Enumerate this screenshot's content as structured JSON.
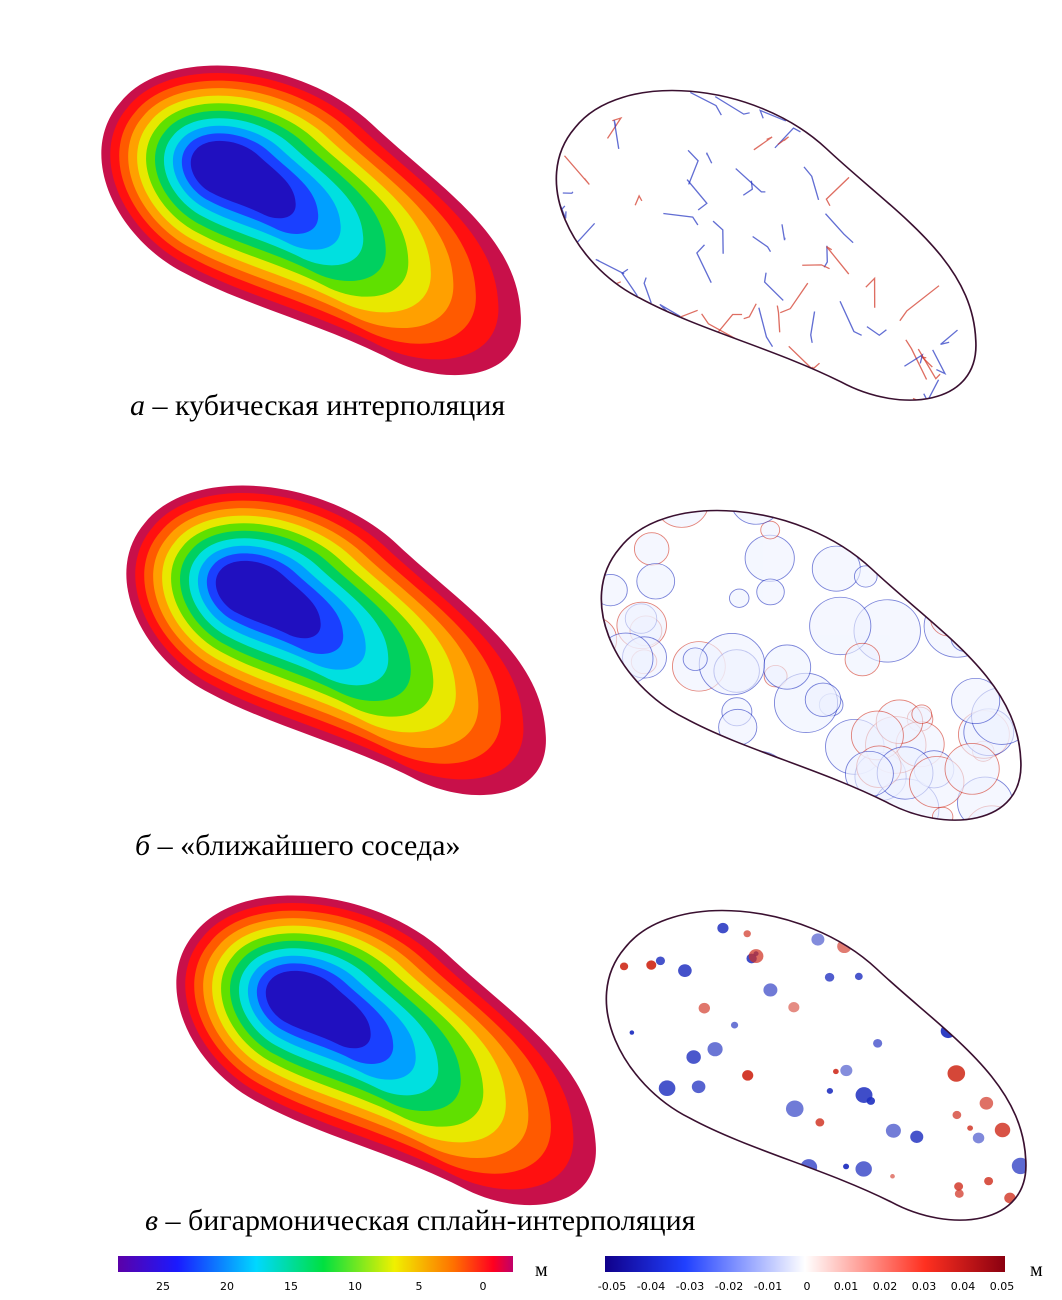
{
  "panels": [
    {
      "letter": "а",
      "caption": "– кубическая интерполяция"
    },
    {
      "letter": "б",
      "caption": "– «ближайшего соседа»"
    },
    {
      "letter": "в",
      "caption": "– бигармоническая сплайн-интерполяция"
    }
  ],
  "colorbars": [
    {
      "ticks": [
        "25",
        "20",
        "15",
        "10",
        "5",
        "0"
      ],
      "unit": "м"
    },
    {
      "ticks": [
        "-0.05",
        "-0.04",
        "-0.03",
        "-0.02",
        "-0.01",
        "0",
        "0.01",
        "0.02",
        "0.03",
        "0.04",
        "0.05"
      ],
      "unit": "м"
    }
  ]
}
